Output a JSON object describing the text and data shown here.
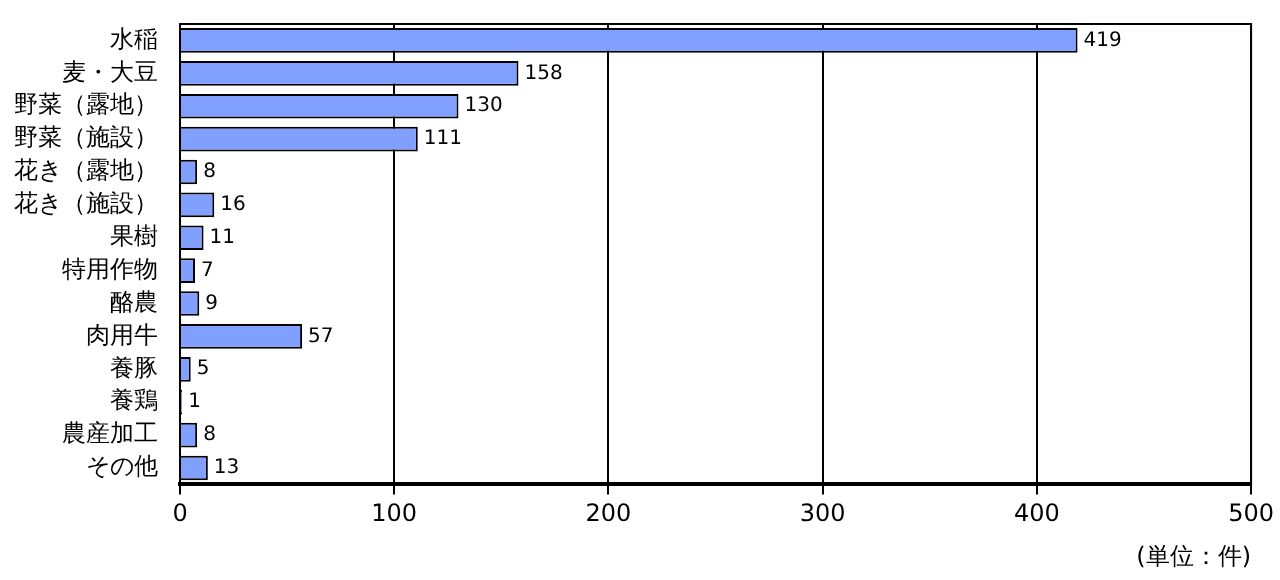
{
  "chart_data": {
    "type": "bar",
    "orientation": "horizontal",
    "categories": [
      "水稲",
      "麦・大豆",
      "野菜（露地）",
      "野菜（施設）",
      "花き（露地）",
      "花き（施設）",
      "果樹",
      "特用作物",
      "酪農",
      "肉用牛",
      "養豚",
      "養鶏",
      "農産加工",
      "その他"
    ],
    "values": [
      419,
      158,
      130,
      111,
      8,
      16,
      11,
      7,
      9,
      57,
      5,
      1,
      8,
      13
    ],
    "color": "#809fff",
    "xlim": [
      0,
      500
    ],
    "xticks": [
      0,
      100,
      200,
      300,
      400,
      500
    ],
    "xlabel": "(単位：件)",
    "grid": "x",
    "data_labels": true,
    "legend": false
  }
}
